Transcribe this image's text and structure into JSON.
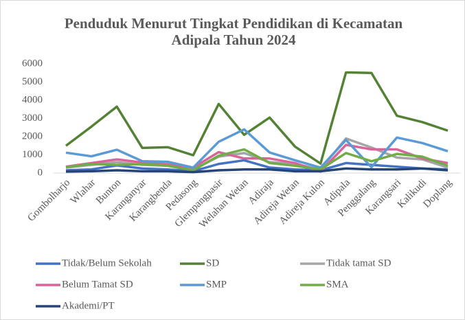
{
  "chart_data": {
    "type": "line",
    "title": "Penduduk Menurut Tingkat Pendidikan di Kecamatan Adipala Tahun 2024",
    "categories": [
      "Gombolharjo",
      "Wlahar",
      "Bunton",
      "Karanganyar",
      "Karangbenda",
      "Pedasong",
      "Glempangpasir",
      "Welahan Wetan",
      "Adiraja",
      "Adireja Wetan",
      "Adireja Kulon",
      "Adipala",
      "Penggalang",
      "Karangsari",
      "Kalikudi",
      "Doplang"
    ],
    "series": [
      {
        "name": "Tidak/Belum Sekolah",
        "color": "#4472c4",
        "values": [
          150,
          200,
          420,
          250,
          200,
          100,
          500,
          700,
          300,
          200,
          150,
          550,
          450,
          350,
          250,
          200
        ]
      },
      {
        "name": "SD",
        "color": "#548235",
        "values": [
          1500,
          2550,
          3650,
          1380,
          1420,
          980,
          3800,
          2100,
          3050,
          1450,
          520,
          5530,
          5500,
          3150,
          2800,
          2330
        ]
      },
      {
        "name": "Tidak tamat SD",
        "color": "#a5a5a5",
        "values": [
          300,
          450,
          600,
          450,
          400,
          200,
          900,
          1100,
          600,
          500,
          200,
          1900,
          1400,
          850,
          750,
          300
        ]
      },
      {
        "name": "Belum Tamat SD",
        "color": "#d9649a",
        "values": [
          350,
          550,
          750,
          580,
          480,
          300,
          1150,
          800,
          800,
          550,
          80,
          1550,
          1300,
          1300,
          800,
          550
        ]
      },
      {
        "name": "SMP",
        "color": "#5b9bd5",
        "values": [
          1120,
          920,
          1280,
          650,
          620,
          300,
          1720,
          2400,
          1130,
          700,
          300,
          1820,
          320,
          1950,
          1650,
          1200
        ]
      },
      {
        "name": "SMA",
        "color": "#70ad47",
        "values": [
          320,
          500,
          450,
          500,
          400,
          150,
          950,
          1300,
          550,
          400,
          200,
          1100,
          650,
          1050,
          900,
          400
        ]
      },
      {
        "name": "Akademi/PT",
        "color": "#264478",
        "values": [
          80,
          100,
          150,
          100,
          100,
          50,
          150,
          200,
          200,
          100,
          100,
          250,
          200,
          200,
          250,
          150
        ]
      }
    ],
    "ylim": [
      0,
      6000
    ],
    "yticks": [
      0,
      1000,
      2000,
      3000,
      4000,
      5000,
      6000
    ],
    "grid": false
  }
}
